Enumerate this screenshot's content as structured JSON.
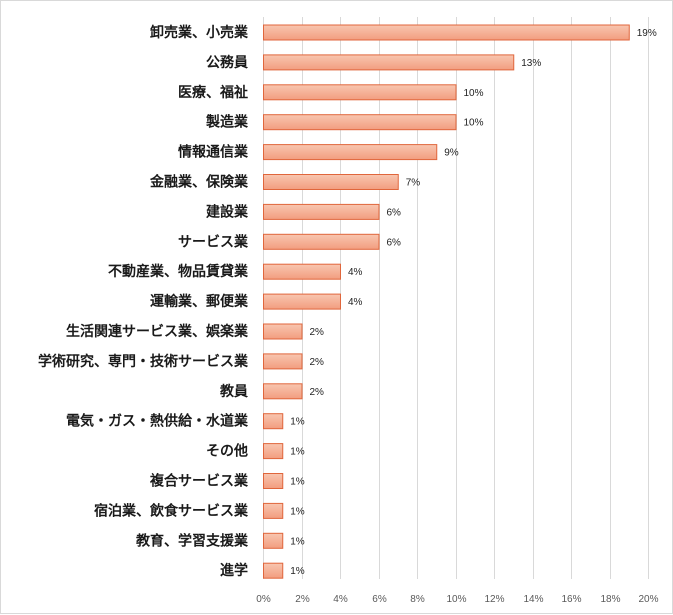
{
  "chart_data": {
    "type": "bar",
    "orientation": "horizontal",
    "categories": [
      "卸売業、小売業",
      "公務員",
      "医療、福祉",
      "製造業",
      "情報通信業",
      "金融業、保険業",
      "建設業",
      "サービス業",
      "不動産業、物品賃貸業",
      "運輸業、郵便業",
      "生活関連サービス業、娯楽業",
      "学術研究、専門・技術サービス業",
      "教員",
      "電気・ガス・熱供給・水道業",
      "その他",
      "複合サービス業",
      "宿泊業、飲食サービス業",
      "教育、学習支援業",
      "進学"
    ],
    "values": [
      19,
      13,
      10,
      10,
      9,
      7,
      6,
      6,
      4,
      4,
      2,
      2,
      2,
      1,
      1,
      1,
      1,
      1,
      1
    ],
    "value_labels": [
      "19%",
      "13%",
      "10%",
      "10%",
      "9%",
      "7%",
      "6%",
      "6%",
      "4%",
      "4%",
      "2%",
      "2%",
      "2%",
      "1%",
      "1%",
      "1%",
      "1%",
      "1%",
      "1%"
    ],
    "xlim": [
      0,
      20
    ],
    "x_ticks": [
      "0%",
      "2%",
      "4%",
      "6%",
      "8%",
      "10%",
      "12%",
      "14%",
      "16%",
      "18%",
      "20%"
    ],
    "title": "",
    "xlabel": "",
    "ylabel": "",
    "grid": "vertical",
    "legend": "none",
    "colors": {
      "bar_fill_top": "#f8c6b0",
      "bar_fill_bottom": "#f29d7f",
      "bar_stroke": "#e0663c",
      "grid": "#d9d9d9"
    }
  }
}
